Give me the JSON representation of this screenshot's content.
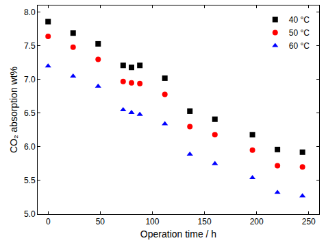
{
  "chart_data": {
    "type": "scatter",
    "x_label": "Operation time / h",
    "y_label": "CO₂ absorption wt%",
    "x": [
      0,
      24,
      48,
      72,
      80,
      88,
      112,
      136,
      160,
      196,
      220,
      244
    ],
    "series": [
      {
        "name": "40 °C",
        "color": "#000000",
        "marker": "square",
        "values": [
          7.86,
          7.69,
          7.53,
          7.21,
          7.18,
          7.21,
          7.02,
          6.53,
          6.41,
          6.18,
          5.96,
          5.92
        ]
      },
      {
        "name": "50 °C",
        "color": "#ff0000",
        "marker": "circle",
        "values": [
          7.64,
          7.48,
          7.3,
          6.97,
          6.95,
          6.94,
          6.78,
          6.3,
          6.18,
          5.95,
          5.72,
          5.7
        ]
      },
      {
        "name": "60 °C",
        "color": "#0000ff",
        "marker": "triangle-up",
        "values": [
          7.2,
          7.05,
          6.9,
          6.55,
          6.51,
          6.48,
          6.34,
          5.89,
          5.75,
          5.54,
          5.32,
          5.27
        ]
      }
    ],
    "xlim": [
      -10,
      260
    ],
    "xticks": [
      0,
      50,
      100,
      150,
      200,
      250
    ],
    "ylim": [
      5.0,
      8.1
    ],
    "yticks": [
      {
        "value": 5,
        "label": "5.0"
      },
      {
        "value": 5.5,
        "label": "5.5"
      },
      {
        "value": 6,
        "label": "6.0"
      },
      {
        "value": 6.5,
        "label": "6.5"
      },
      {
        "value": 7,
        "label": "7.0"
      },
      {
        "value": 7.5,
        "label": "7.5"
      },
      {
        "value": 8,
        "label": "8.0"
      }
    ],
    "grid": false,
    "legend": "top-right"
  }
}
